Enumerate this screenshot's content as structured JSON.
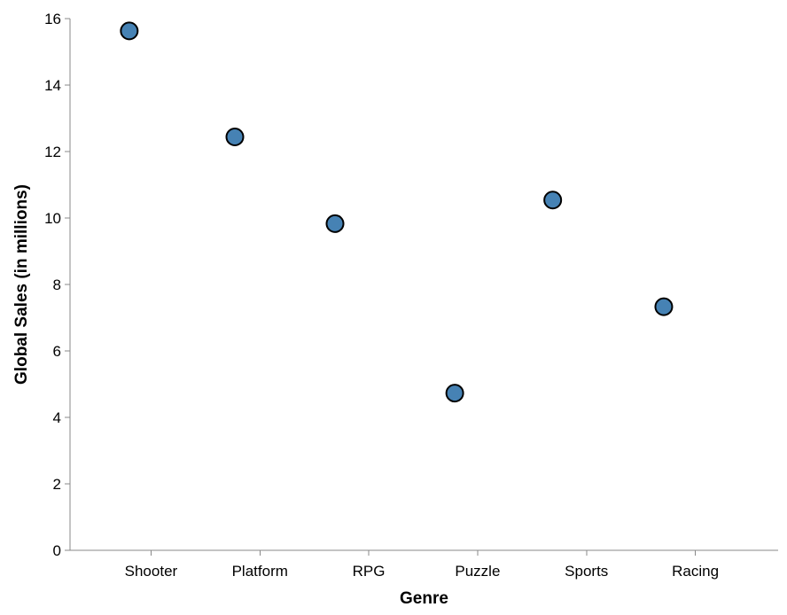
{
  "chart_data": {
    "type": "scatter",
    "title": "",
    "xlabel": "Genre",
    "ylabel": "Global Sales (in millions)",
    "categories": [
      "Shooter",
      "Platform",
      "RPG",
      "Puzzle",
      "Sports",
      "Racing"
    ],
    "values": [
      15.63,
      12.44,
      9.83,
      4.73,
      10.54,
      7.33
    ],
    "jitter": [
      -0.2,
      -0.23,
      -0.31,
      -0.21,
      -0.31,
      -0.29
    ],
    "ylim": [
      0,
      16
    ],
    "yticks": [
      0,
      2,
      4,
      6,
      8,
      10,
      12,
      14,
      16
    ],
    "grid": false,
    "legend": "none",
    "point_color": "#4682b4",
    "point_stroke": "#000000",
    "axis_color": "#888888"
  }
}
